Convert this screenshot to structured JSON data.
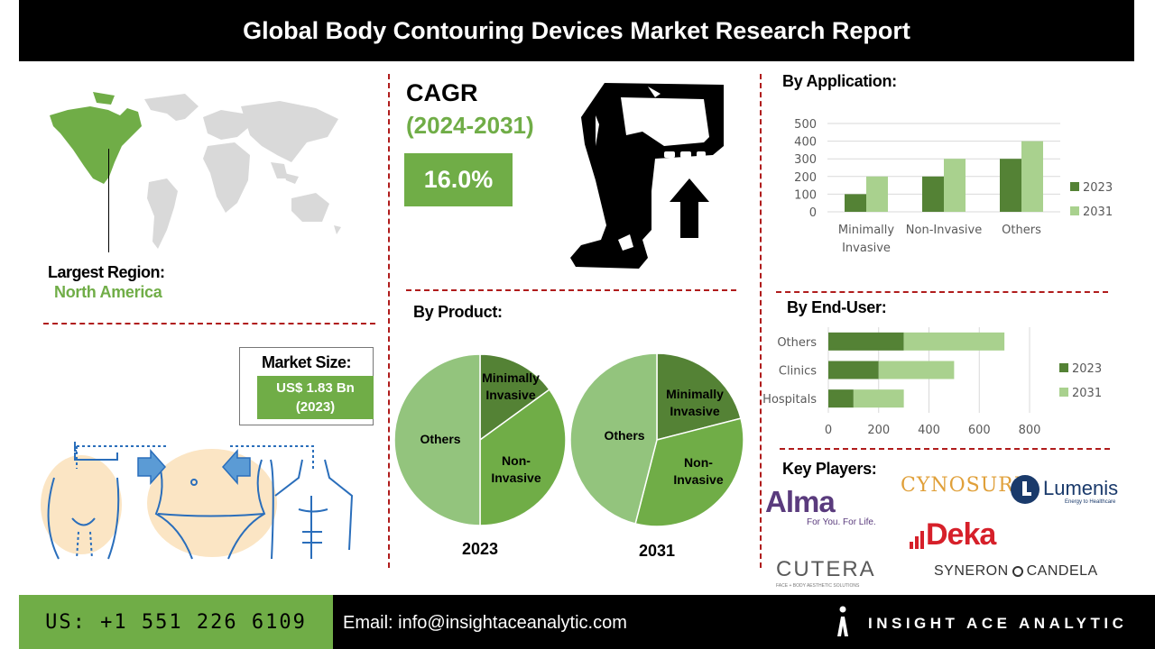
{
  "header": {
    "title": "Global Body Contouring Devices Market Research Report"
  },
  "region": {
    "label": "Largest Region:",
    "value": "North America"
  },
  "market_size": {
    "label": "Market Size:",
    "value_line1": "US$ 1.83 Bn",
    "value_line2": "(2023)"
  },
  "cagr": {
    "label": "CAGR",
    "period": "(2024-2031)",
    "value": "16.0%"
  },
  "product": {
    "title": "By Product:",
    "pie_2023": {
      "year": "2023",
      "slices": [
        {
          "label_line1": "Minimally",
          "label_line2": "Invasive",
          "value": 15,
          "color": "#548235"
        },
        {
          "label_line1": "Non-",
          "label_line2": "Invasive",
          "value": 35,
          "color": "#70ad47"
        },
        {
          "label_line1": "Others",
          "label_line2": "",
          "value": 50,
          "color": "#93c47d"
        }
      ]
    },
    "pie_2031": {
      "year": "2031",
      "slices": [
        {
          "label_line1": "Minimally",
          "label_line2": "Invasive",
          "value": 21,
          "color": "#548235"
        },
        {
          "label_line1": "Non-",
          "label_line2": "Invasive",
          "value": 33,
          "color": "#70ad47"
        },
        {
          "label_line1": "Others",
          "label_line2": "",
          "value": 46,
          "color": "#93c47d"
        }
      ]
    }
  },
  "application": {
    "title": "By Application:"
  },
  "end_user": {
    "title": "By  End-User:"
  },
  "key_players": {
    "title": "Key Players:",
    "alma": "Alma",
    "alma_tagline": "For You. For Life.",
    "cynosure": "CYNOSURE",
    "lumenis": "Lumenis",
    "lumenis_tagline": "Energy to Healthcare",
    "deka": "Deka",
    "cutera": "CUTERA",
    "cutera_tagline": "FACE + BODY AESTHETIC SOLUTIONS",
    "syneron": "SYNERON",
    "candela": "CANDELA"
  },
  "footer": {
    "phone": "US: +1 551 226 6109",
    "email": "Email: info@insightaceanalytic.com",
    "brand": "INSIGHT ACE ANALYTIC"
  },
  "colors": {
    "dark_green": "#548235",
    "green": "#70ad47",
    "light_green": "#a9d18e",
    "accent_red": "#b01c1c"
  },
  "chart_data": [
    {
      "type": "bar",
      "title": "By Application:",
      "categories": [
        "Minimally Invasive",
        "Non-Invasive",
        "Others"
      ],
      "series": [
        {
          "name": "2023",
          "values": [
            100,
            200,
            300
          ],
          "color": "#548235"
        },
        {
          "name": "2031",
          "values": [
            200,
            300,
            400
          ],
          "color": "#a9d18e"
        }
      ],
      "ylim": [
        0,
        500
      ],
      "yticks": [
        0,
        100,
        200,
        300,
        400,
        500
      ],
      "legend": "right",
      "grid": true
    },
    {
      "type": "bar",
      "orientation": "horizontal-stacked",
      "title": "By  End-User:",
      "categories": [
        "Others",
        "Clinics",
        "Hospitals"
      ],
      "series": [
        {
          "name": "2023",
          "values": [
            300,
            200,
            100
          ],
          "color": "#548235"
        },
        {
          "name": "2031",
          "values": [
            400,
            300,
            200
          ],
          "color": "#a9d18e"
        }
      ],
      "xlim": [
        0,
        800
      ],
      "xticks": [
        0,
        200,
        400,
        600,
        800
      ],
      "legend": "right",
      "grid": true
    }
  ]
}
